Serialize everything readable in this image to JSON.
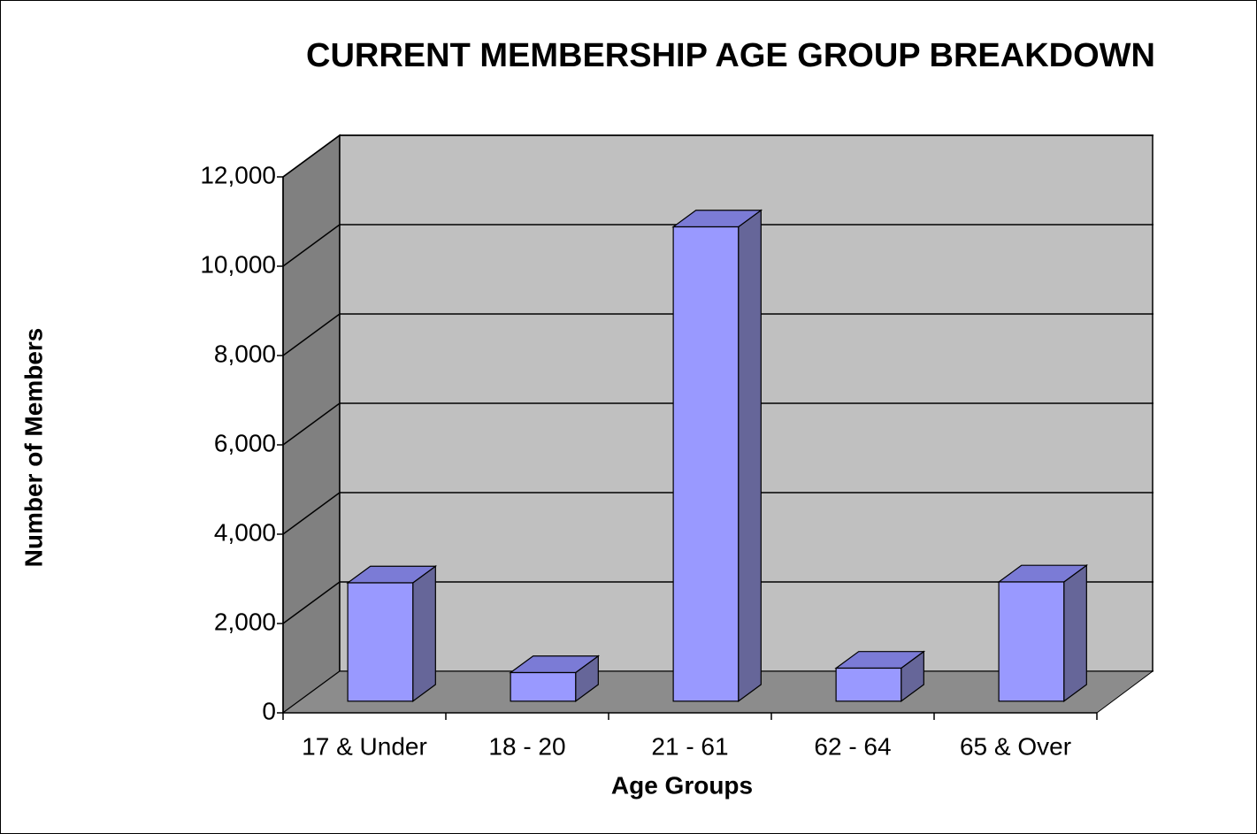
{
  "chart_data": {
    "type": "bar3d",
    "title": "CURRENT MEMBERSHIP AGE GROUP BREAKDOWN",
    "x_label": "Age Groups",
    "y_label": "Number of Members",
    "categories": [
      "17 & Under",
      "18 - 20",
      "21 - 61",
      "62 - 64",
      "65 & Over"
    ],
    "values": [
      2650,
      640,
      10620,
      740,
      2670
    ],
    "color": "#9999ff",
    "side_color": "#666699",
    "top_color": "#7b7bd6",
    "ylim": [
      0,
      12000
    ],
    "yticks": [
      0,
      {
        "value": 2000,
        "label": "2,000"
      },
      {
        "value": 4000,
        "label": "4,000"
      },
      {
        "value": 6000,
        "label": "6,000"
      },
      {
        "value": 8000,
        "label": "8,000"
      },
      {
        "value": 10000,
        "label": "10,000"
      },
      {
        "value": 12000,
        "label": "12,000"
      }
    ],
    "grid": true
  }
}
